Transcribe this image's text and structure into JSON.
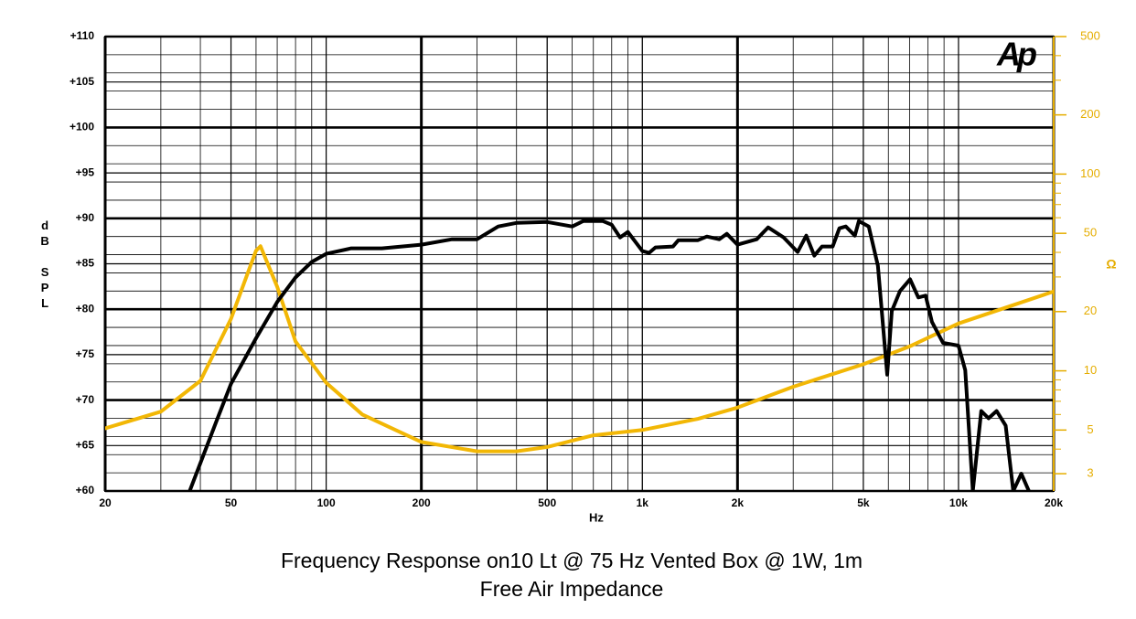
{
  "chart_data": {
    "type": "line",
    "title": "Frequency Response on10 Lt @ 75 Hz Vented Box @ 1W, 1m",
    "subtitle": "Free Air Impedance",
    "logo": "Ap",
    "xlabel": "Hz",
    "ylabel": "dB SPL",
    "y2label": "Ω",
    "xscale": "log",
    "y2scale": "log",
    "grid": true,
    "xlim": [
      20,
      20000
    ],
    "xticks": [
      20,
      50,
      100,
      200,
      500,
      {
        "value": 1000,
        "label": "1k"
      },
      {
        "value": 2000,
        "label": "2k"
      },
      {
        "value": 5000,
        "label": "5k"
      },
      {
        "value": 10000,
        "label": "10k"
      },
      {
        "value": 20000,
        "label": "20k"
      }
    ],
    "ylim": [
      60,
      110
    ],
    "yticks": [
      {
        "value": 60,
        "label": "+60"
      },
      {
        "value": 65,
        "label": "+65"
      },
      {
        "value": 70,
        "label": "+70"
      },
      {
        "value": 75,
        "label": "+75"
      },
      {
        "value": 80,
        "label": "+80"
      },
      {
        "value": 85,
        "label": "+85"
      },
      {
        "value": 90,
        "label": "+90"
      },
      {
        "value": 95,
        "label": "+95"
      },
      {
        "value": 100,
        "label": "+100"
      },
      {
        "value": 105,
        "label": "+105"
      },
      {
        "value": 110,
        "label": "+110"
      }
    ],
    "y2lim": [
      2.45,
      500
    ],
    "y2ticks": [
      3,
      5,
      10,
      20,
      50,
      100,
      200,
      500
    ],
    "series": [
      {
        "color": "#000000",
        "x": [
          37,
          45,
          50,
          60,
          70,
          80,
          90,
          100,
          120,
          150,
          200,
          250,
          300,
          350,
          400,
          500,
          600,
          650,
          750,
          800,
          850,
          900,
          1000,
          1050,
          1100,
          1250,
          1300,
          1500,
          1600,
          1750,
          1850,
          2000,
          2300,
          2500,
          2800,
          3100,
          3300,
          3500,
          3700,
          4000,
          4200,
          4400,
          4700,
          4840,
          5200,
          5560,
          5950,
          6150,
          6530,
          7030,
          7460,
          7870,
          8240,
          8930,
          10000,
          10500,
          11100,
          11800,
          12450,
          13200,
          14100,
          14900,
          15800,
          16700
        ],
        "values": [
          60,
          67.7,
          71.8,
          76.8,
          80.8,
          83.5,
          85.2,
          86.1,
          86.7,
          86.7,
          87.1,
          87.7,
          87.7,
          89.1,
          89.5,
          89.6,
          89.1,
          89.7,
          89.7,
          89.3,
          87.9,
          88.5,
          86.4,
          86.2,
          86.8,
          86.9,
          87.6,
          87.6,
          88.0,
          87.7,
          88.3,
          87.1,
          87.7,
          89.0,
          87.9,
          86.3,
          88.1,
          85.9,
          86.9,
          86.9,
          88.9,
          89.1,
          88.1,
          89.7,
          89.1,
          84.8,
          72.8,
          79.8,
          82.0,
          83.3,
          81.3,
          81.5,
          78.6,
          76.3,
          76.0,
          73.3,
          60,
          68.8,
          68.0,
          68.8,
          67.2,
          60,
          61.9,
          60
        ]
      },
      {
        "color": "#f2b705",
        "axis": "y2",
        "x": [
          20,
          30,
          40,
          50,
          55,
          60,
          62,
          70,
          80,
          100,
          130,
          200,
          300,
          400,
          500,
          700,
          1000,
          1500,
          2000,
          3000,
          5000,
          7000,
          10000,
          20000
        ],
        "values": [
          5.1,
          6.2,
          8.9,
          18.4,
          28,
          40.8,
          43,
          26.7,
          14.1,
          8.7,
          6.0,
          4.35,
          3.9,
          3.9,
          4.1,
          4.7,
          5.0,
          5.7,
          6.5,
          8.3,
          10.8,
          13.3,
          17.4,
          25.3
        ]
      }
    ]
  }
}
